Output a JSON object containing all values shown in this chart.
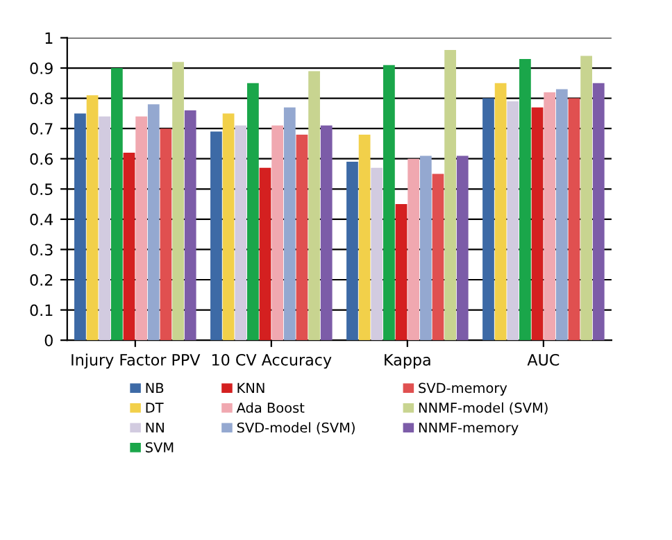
{
  "chart_data": {
    "type": "bar",
    "categories": [
      "Injury Factor PPV",
      "10 CV Accuracy",
      "Kappa",
      "AUC"
    ],
    "series": [
      {
        "name": "NB",
        "color": "#3d6aa6",
        "values": [
          0.75,
          0.69,
          0.59,
          0.8
        ]
      },
      {
        "name": "DT",
        "color": "#f2d04a",
        "values": [
          0.81,
          0.75,
          0.68,
          0.85
        ]
      },
      {
        "name": "NN",
        "color": "#d2cbe0",
        "values": [
          0.74,
          0.71,
          0.57,
          0.79
        ]
      },
      {
        "name": "SVM",
        "color": "#1aa64a",
        "values": [
          0.9,
          0.85,
          0.91,
          0.93
        ]
      },
      {
        "name": "KNN",
        "color": "#d42020",
        "values": [
          0.62,
          0.57,
          0.45,
          0.77
        ]
      },
      {
        "name": "Ada Boost",
        "color": "#f0a8b0",
        "values": [
          0.74,
          0.71,
          0.6,
          0.82
        ]
      },
      {
        "name": "SVD-model (SVM)",
        "color": "#94a8d0",
        "values": [
          0.78,
          0.77,
          0.61,
          0.83
        ]
      },
      {
        "name": "SVD-memory",
        "color": "#e05050",
        "values": [
          0.7,
          0.68,
          0.55,
          0.8
        ]
      },
      {
        "name": "NNMF-model (SVM)",
        "color": "#c8d490",
        "values": [
          0.92,
          0.89,
          0.96,
          0.94
        ]
      },
      {
        "name": "NNMF-memory",
        "color": "#7c5ca8",
        "values": [
          0.76,
          0.71,
          0.61,
          0.85
        ]
      }
    ],
    "ylim": [
      0,
      1
    ],
    "yticks": [
      0,
      0.1,
      0.2,
      0.3,
      0.4,
      0.5,
      0.6,
      0.7,
      0.8,
      0.9,
      1
    ],
    "grid": "y",
    "legend": "bottom"
  }
}
